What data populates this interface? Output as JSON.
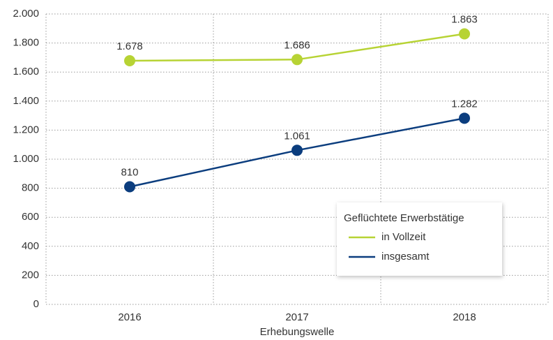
{
  "chart_data": {
    "type": "line",
    "x_label": "Erhebungswelle",
    "categories": [
      "2016",
      "2017",
      "2018"
    ],
    "legend_title": "Geflüchtete Erwerbstätige",
    "series": [
      {
        "name": "in Vollzeit",
        "color": "#b7d334",
        "values": [
          1678,
          1686,
          1863
        ],
        "value_labels": [
          "1.678",
          "1.686",
          "1.863"
        ]
      },
      {
        "name": "insgesamt",
        "color": "#0b3d7e",
        "values": [
          810,
          1061,
          1282
        ],
        "value_labels": [
          "810",
          "1.061",
          "1.282"
        ]
      }
    ],
    "ylim": [
      0,
      2000
    ],
    "yticks": [
      0,
      200,
      400,
      600,
      800,
      {
        "value": 1000,
        "label": "1.000"
      },
      {
        "value": 1200,
        "label": "1.200"
      },
      {
        "value": 1400,
        "label": "1.400"
      },
      {
        "value": 1600,
        "label": "1.600"
      },
      {
        "value": 1800,
        "label": "1.800"
      },
      {
        "value": 2000,
        "label": "2.000"
      }
    ],
    "grid": true
  }
}
